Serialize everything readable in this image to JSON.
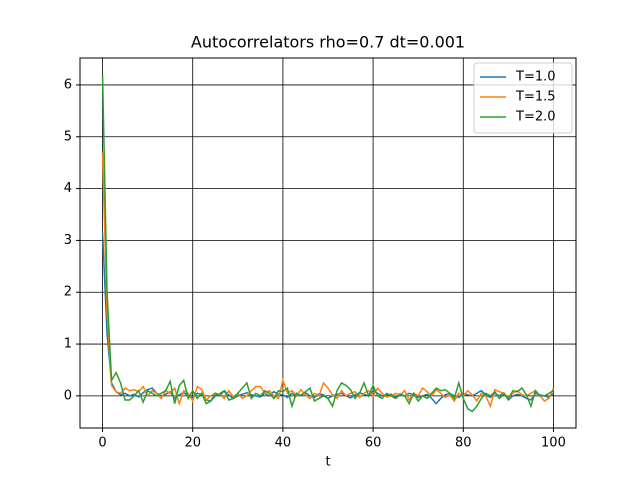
{
  "chart_data": {
    "type": "line",
    "title": "Autocorrelators rho=0.7 dt=0.001",
    "xlabel": "t",
    "x": [
      0,
      1,
      2,
      3,
      4,
      5,
      6,
      7,
      8,
      9,
      10,
      11,
      12,
      13,
      14,
      15,
      16,
      17,
      18,
      19,
      20,
      21,
      22,
      23,
      24,
      25,
      26,
      27,
      28,
      29,
      30,
      31,
      32,
      33,
      34,
      35,
      36,
      37,
      38,
      39,
      40,
      41,
      42,
      43,
      44,
      45,
      46,
      47,
      48,
      49,
      50,
      51,
      52,
      53,
      54,
      55,
      56,
      57,
      58,
      59,
      60,
      61,
      62,
      63,
      64,
      65,
      66,
      67,
      68,
      69,
      70,
      71,
      72,
      73,
      74,
      75,
      76,
      77,
      78,
      79,
      80,
      81,
      82,
      83,
      84,
      85,
      86,
      87,
      88,
      89,
      90,
      91,
      92,
      93,
      94,
      95,
      96,
      97,
      98,
      99,
      100
    ],
    "series": [
      {
        "name": "T=1.0",
        "color": "#1f77b4",
        "values": [
          3.15,
          1.2,
          0.25,
          0.08,
          0.02,
          0.05,
          0.0,
          0.03,
          -0.02,
          0.06,
          0.12,
          0.15,
          0.05,
          0.0,
          0.03,
          0.08,
          -0.05,
          0.02,
          0.06,
          0.0,
          -0.03,
          0.05,
          0.02,
          -0.08,
          -0.1,
          0.0,
          0.04,
          0.1,
          0.02,
          -0.05,
          0.0,
          0.03,
          0.06,
          0.02,
          0.0,
          -0.02,
          0.05,
          0.0,
          0.08,
          0.03,
          0.02,
          -0.03,
          0.05,
          0.0,
          0.02,
          0.06,
          0.0,
          -0.03,
          0.04,
          0.02,
          -0.05,
          0.0,
          0.03,
          0.05,
          0.0,
          -0.04,
          0.02,
          0.06,
          0.03,
          0.0,
          0.1,
          0.05,
          0.0,
          0.02,
          0.03,
          -0.02,
          0.04,
          0.0,
          0.05,
          0.02,
          -0.03,
          0.0,
          0.03,
          -0.05,
          -0.15,
          -0.05,
          0.02,
          0.05,
          0.0,
          -0.03,
          0.04,
          0.02,
          0.0,
          0.05,
          0.1,
          0.02,
          -0.03,
          0.05,
          0.0,
          0.06,
          -0.08,
          0.0,
          0.03,
          0.0,
          -0.05,
          -0.08,
          0.05,
          0.02,
          0.0,
          -0.03,
          0.05
        ]
      },
      {
        "name": "T=1.5",
        "color": "#ff7f0e",
        "values": [
          4.7,
          1.6,
          0.2,
          0.08,
          0.05,
          0.15,
          0.1,
          0.12,
          0.08,
          0.18,
          0.0,
          0.1,
          0.05,
          -0.05,
          0.1,
          0.05,
          0.15,
          -0.15,
          0.1,
          0.05,
          -0.1,
          0.18,
          0.12,
          -0.08,
          0.0,
          0.05,
          0.03,
          -0.05,
          0.1,
          -0.02,
          0.05,
          -0.05,
          0.0,
          0.1,
          0.18,
          0.18,
          0.05,
          0.1,
          0.0,
          -0.05,
          0.3,
          0.05,
          0.1,
          0.0,
          0.12,
          0.02,
          -0.05,
          0.05,
          0.0,
          0.25,
          0.15,
          0.02,
          -0.05,
          0.1,
          0.0,
          0.05,
          0.08,
          -0.03,
          0.05,
          0.1,
          0.0,
          0.15,
          0.05,
          -0.02,
          0.0,
          0.05,
          0.02,
          0.1,
          -0.08,
          0.05,
          0.0,
          0.15,
          0.08,
          0.0,
          0.12,
          0.05,
          -0.03,
          0.02,
          -0.1,
          0.05,
          0.0,
          0.1,
          0.02,
          -0.1,
          0.05,
          0.0,
          -0.2,
          0.12,
          0.08,
          0.05,
          -0.02,
          0.05,
          0.1,
          0.02,
          0.0,
          0.05,
          0.1,
          0.0,
          -0.1,
          -0.05,
          0.15
        ]
      },
      {
        "name": "T=2.0",
        "color": "#2ca02c",
        "values": [
          6.2,
          2.0,
          0.3,
          0.45,
          0.25,
          -0.08,
          -0.08,
          0.0,
          0.1,
          -0.12,
          0.1,
          0.05,
          0.0,
          0.05,
          0.1,
          0.28,
          -0.15,
          0.2,
          0.3,
          -0.05,
          0.1,
          -0.05,
          0.05,
          -0.15,
          -0.1,
          0.05,
          0.0,
          0.1,
          -0.08,
          -0.05,
          0.05,
          0.15,
          0.25,
          -0.05,
          0.05,
          0.0,
          0.1,
          0.05,
          -0.05,
          0.1,
          0.08,
          0.15,
          -0.2,
          0.05,
          0.0,
          0.08,
          0.15,
          -0.1,
          -0.05,
          0.0,
          -0.05,
          -0.2,
          0.1,
          0.25,
          0.2,
          0.12,
          -0.05,
          0.05,
          0.25,
          0.0,
          0.2,
          0.0,
          -0.05,
          0.05,
          0.0,
          -0.05,
          0.02,
          0.0,
          -0.15,
          0.05,
          -0.1,
          0.0,
          -0.05,
          0.05,
          0.15,
          0.1,
          0.12,
          0.05,
          -0.05,
          0.25,
          -0.05,
          -0.25,
          -0.3,
          -0.2,
          -0.05,
          0.05,
          0.0,
          0.08,
          -0.05,
          0.03,
          -0.05,
          0.1,
          0.08,
          0.15,
          0.02,
          -0.2,
          0.1,
          0.0,
          0.0,
          0.05,
          0.1
        ]
      }
    ],
    "xlim": [
      -5,
      105
    ],
    "xticks": [
      0,
      20,
      40,
      60,
      80,
      100
    ],
    "ylim": [
      -0.62,
      6.52
    ],
    "yticks": [
      0,
      1,
      2,
      3,
      4,
      5,
      6
    ],
    "grid": true,
    "legend": "upper right"
  }
}
